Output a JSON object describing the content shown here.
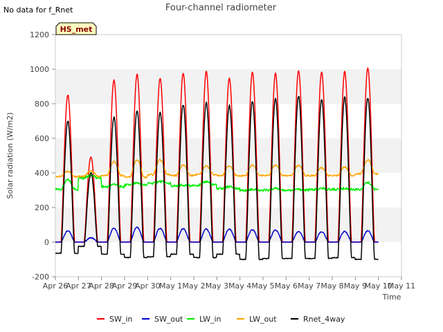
{
  "corner_note": "No data for f_Rnet",
  "badge": "HS_met",
  "chart_data": {
    "type": "line",
    "title": "Four-channel radiometer",
    "xlabel": "Time",
    "ylabel": "Solar radiation (W/m2)",
    "xlim": [
      "2024-04-26",
      "2024-05-11"
    ],
    "ylim": [
      -200,
      1200
    ],
    "yticks": [
      -200,
      0,
      200,
      400,
      600,
      800,
      1000,
      1200
    ],
    "xtick_labels": [
      "Apr 26",
      "Apr 27",
      "Apr 28",
      "Apr 29",
      "Apr 30",
      "May 1",
      "May 2",
      "May 3",
      "May 4",
      "May 5",
      "May 6",
      "May 7",
      "May 8",
      "May 9",
      "May 10",
      "May 11"
    ],
    "data_range": [
      "2024-04-26",
      "2024-05-10"
    ],
    "legend_position": "bottom-center",
    "grid": "alternating-bands",
    "series": [
      {
        "name": "SW_in",
        "color": "#ff0000",
        "daily_peak": [
          850,
          490,
          935,
          970,
          945,
          975,
          985,
          945,
          980,
          975,
          990,
          980,
          985,
          1005
        ]
      },
      {
        "name": "SW_out",
        "color": "#0000cc",
        "daily_peak": [
          65,
          25,
          80,
          85,
          80,
          78,
          75,
          75,
          72,
          70,
          60,
          60,
          62,
          65
        ]
      },
      {
        "name": "LW_in",
        "color": "#00ee00",
        "night_level": [
          305,
          370,
          320,
          330,
          340,
          325,
          330,
          310,
          300,
          300,
          300,
          305,
          305,
          305
        ],
        "day_level": [
          360,
          385,
          335,
          340,
          350,
          330,
          350,
          320,
          305,
          310,
          305,
          310,
          310,
          345
        ]
      },
      {
        "name": "LW_out",
        "color": "#ffa500",
        "night_level": [
          380,
          380,
          385,
          375,
          390,
          385,
          390,
          385,
          385,
          385,
          385,
          385,
          385,
          395
        ],
        "daily_peak": [
          410,
          410,
          465,
          475,
          475,
          445,
          440,
          440,
          445,
          445,
          445,
          430,
          435,
          475
        ]
      },
      {
        "name": "Rnet_4way",
        "color": "#000000",
        "night_level": [
          -65,
          -25,
          -70,
          -90,
          -85,
          -70,
          -90,
          -70,
          -100,
          -95,
          -95,
          -95,
          -90,
          -100
        ],
        "daily_peak": [
          700,
          400,
          720,
          760,
          750,
          795,
          805,
          790,
          815,
          830,
          845,
          825,
          840,
          835
        ]
      }
    ]
  }
}
